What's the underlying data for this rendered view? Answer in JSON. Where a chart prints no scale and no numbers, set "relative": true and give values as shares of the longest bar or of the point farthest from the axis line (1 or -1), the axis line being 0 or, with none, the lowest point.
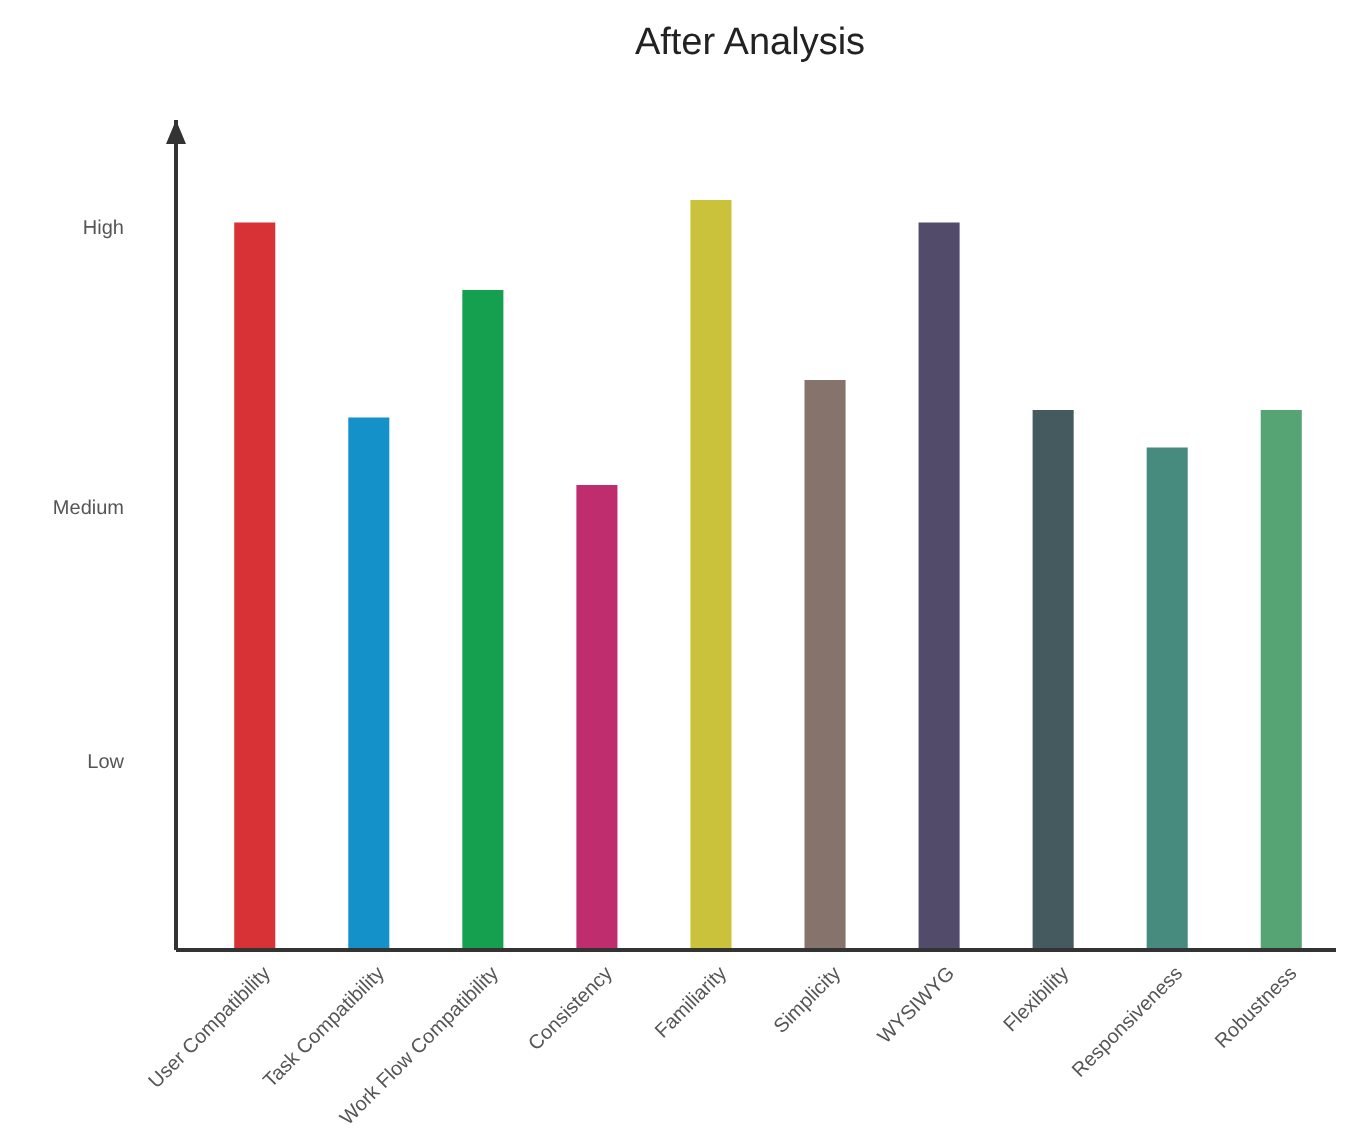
{
  "chart_data": {
    "type": "bar",
    "title": "After Analysis",
    "categories": [
      "User Compatibility",
      "Task Compatibility",
      "Work Flow Compatibility",
      "Consistency",
      "Familiarity",
      "Simplicity",
      "WYSIWYG",
      "Flexibility",
      "Responsiveness",
      "Robustness"
    ],
    "values": [
      0.97,
      0.71,
      0.88,
      0.62,
      1,
      0.76,
      0.97,
      0.72,
      0.67,
      0.72
    ],
    "colors": [
      "#d93236",
      "#1591c9",
      "#15a050",
      "#c02d6e",
      "#c9c23a",
      "#86736c",
      "#524c6a",
      "#455a5e",
      "#478a7e",
      "#56a474"
    ],
    "relative": true,
    "annotations": [
      "High",
      "Medium",
      "Low"
    ]
  }
}
